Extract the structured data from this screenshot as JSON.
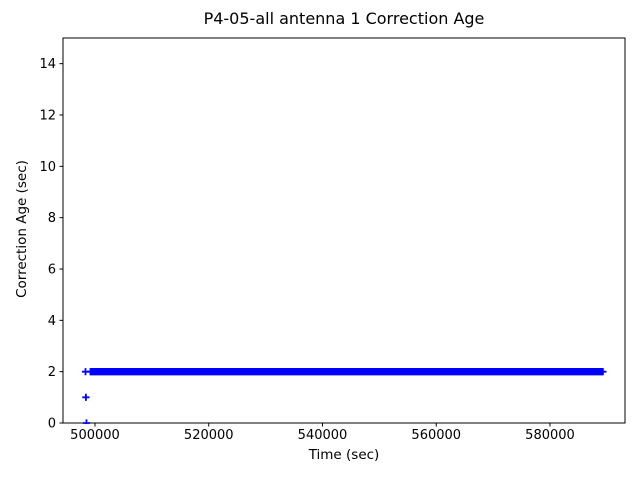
{
  "chart_data": {
    "type": "scatter",
    "title": "P4-05-all antenna 1 Correction Age",
    "xlabel": "Time (sec)",
    "ylabel": "Correction Age (sec)",
    "marker": "plus",
    "marker_color": "#0000ff",
    "axis_color": "#000000",
    "background_color": "#ffffff",
    "grid": false,
    "legend": null,
    "xlim": [
      494374,
      593187
    ],
    "ylim": [
      0,
      15
    ],
    "xticks": [
      500000,
      520000,
      540000,
      560000,
      580000
    ],
    "xtick_labels": [
      "500000",
      "520000",
      "540000",
      "560000",
      "580000"
    ],
    "yticks": [
      0,
      2,
      4,
      6,
      8,
      10,
      12,
      14
    ],
    "ytick_labels": [
      "0",
      "2",
      "4",
      "6",
      "8",
      "10",
      "12",
      "14"
    ],
    "series": [
      {
        "name": "antenna-1-correction-age",
        "dense_band": {
          "y": 2,
          "t_start": 499200,
          "t_end": 589300,
          "description": "continuous run of '+' markers at correction age 2 sec"
        },
        "isolated_points": [
          {
            "t": 498330,
            "age": 2
          },
          {
            "t": 498400,
            "age": 1
          },
          {
            "t": 498500,
            "age": 0
          }
        ]
      }
    ]
  }
}
